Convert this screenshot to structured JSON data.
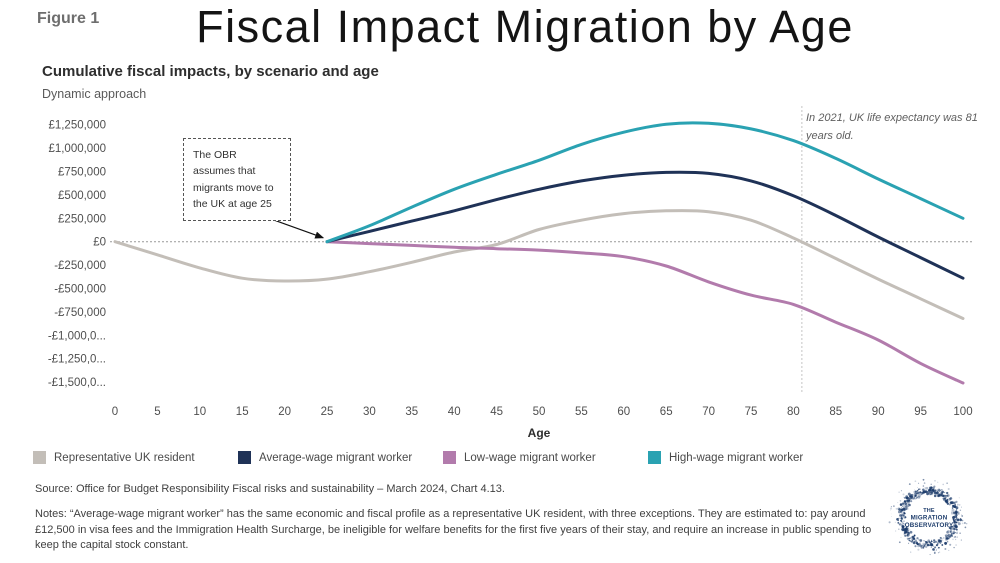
{
  "header": {
    "figure_label": "Figure 1",
    "title": "Fiscal Impact Migration by Age"
  },
  "chart_data": {
    "type": "line",
    "title": "Cumulative fiscal impacts, by scenario and age",
    "subtitle": "Dynamic approach",
    "xlabel": "Age",
    "xlim": [
      0,
      100
    ],
    "ylim": [
      -1500000,
      1250000
    ],
    "grid": "zero-line-only",
    "legend_position": "bottom",
    "x_ticks": [
      0,
      5,
      10,
      15,
      20,
      25,
      30,
      35,
      40,
      45,
      50,
      55,
      60,
      65,
      70,
      75,
      80,
      85,
      90,
      95,
      100
    ],
    "y_ticks": [
      {
        "value": 1250000,
        "label": "£1,250,000"
      },
      {
        "value": 1000000,
        "label": "£1,000,000"
      },
      {
        "value": 750000,
        "label": "£750,000"
      },
      {
        "value": 500000,
        "label": "£500,000"
      },
      {
        "value": 250000,
        "label": "£250,000"
      },
      {
        "value": 0,
        "label": "£0"
      },
      {
        "value": -250000,
        "label": "-£250,000"
      },
      {
        "value": -500000,
        "label": "-£500,000"
      },
      {
        "value": -750000,
        "label": "-£750,000"
      },
      {
        "value": -1000000,
        "label": "-£1,000,0..."
      },
      {
        "value": -1250000,
        "label": "-£1,250,0..."
      },
      {
        "value": -1500000,
        "label": "-£1,500,0..."
      }
    ],
    "series": [
      {
        "name": "Representative UK resident",
        "color": "#c3beb8",
        "x": [
          0,
          5,
          10,
          15,
          20,
          25,
          30,
          35,
          40,
          45,
          50,
          55,
          60,
          65,
          70,
          75,
          80,
          85,
          90,
          95,
          100
        ],
        "y": [
          0,
          -140000,
          -280000,
          -390000,
          -420000,
          -400000,
          -320000,
          -220000,
          -110000,
          -30000,
          130000,
          230000,
          300000,
          330000,
          320000,
          230000,
          40000,
          -180000,
          -400000,
          -610000,
          -820000
        ]
      },
      {
        "name": "Low-wage migrant worker",
        "color": "#b27bac",
        "x": [
          25,
          30,
          35,
          40,
          45,
          50,
          55,
          60,
          65,
          70,
          75,
          80,
          85,
          90,
          95,
          100
        ],
        "y": [
          0,
          -20000,
          -40000,
          -60000,
          -75000,
          -90000,
          -120000,
          -160000,
          -260000,
          -430000,
          -570000,
          -670000,
          -860000,
          -1050000,
          -1300000,
          -1510000
        ]
      },
      {
        "name": "Average-wage migrant worker",
        "color": "#1f3257",
        "x": [
          25,
          30,
          35,
          40,
          45,
          50,
          55,
          60,
          65,
          70,
          75,
          80,
          85,
          90,
          95,
          100
        ],
        "y": [
          0,
          110000,
          220000,
          330000,
          450000,
          560000,
          650000,
          710000,
          740000,
          730000,
          650000,
          490000,
          280000,
          50000,
          -170000,
          -390000
        ]
      },
      {
        "name": "High-wage migrant worker",
        "color": "#2aa2b2",
        "x": [
          25,
          30,
          35,
          40,
          45,
          50,
          55,
          60,
          65,
          70,
          75,
          80,
          85,
          90,
          95,
          100
        ],
        "y": [
          0,
          170000,
          370000,
          560000,
          720000,
          870000,
          1040000,
          1170000,
          1255000,
          1265000,
          1205000,
          1080000,
          890000,
          670000,
          460000,
          250000
        ]
      }
    ],
    "legend_order": [
      0,
      2,
      1,
      3
    ],
    "annotations": [
      {
        "id": "obr-box",
        "text": "The OBR assumes that migrants move to the UK at age 25",
        "arrow_to_age": 25,
        "arrow_to_value": 0
      },
      {
        "id": "life-expectancy",
        "text": "In 2021, UK life expectancy was 81 years old.",
        "vline_age": 81
      }
    ]
  },
  "footer": {
    "source": "Source: Office for Budget Responsibility Fiscal risks and sustainability – March 2024, Chart 4.13.",
    "notes": "Notes: “Average-wage migrant worker” has the same economic and fiscal profile as a representative UK resident, with three exceptions. They are estimated to: pay around £12,500 in visa fees and the Immigration Health Surcharge, be ineligible for welfare benefits for the first five years of their stay, and require an increase in public spending to keep the capital stock constant."
  },
  "logo": {
    "lines": [
      "THE",
      "MIGRATION",
      "OBSERVATORY"
    ],
    "color": "#1d3c6b"
  }
}
